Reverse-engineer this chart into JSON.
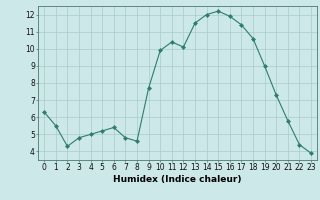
{
  "x": [
    0,
    1,
    2,
    3,
    4,
    5,
    6,
    7,
    8,
    9,
    10,
    11,
    12,
    13,
    14,
    15,
    16,
    17,
    18,
    19,
    20,
    21,
    22,
    23
  ],
  "y": [
    6.3,
    5.5,
    4.3,
    4.8,
    5.0,
    5.2,
    5.4,
    4.8,
    4.6,
    7.7,
    9.9,
    10.4,
    10.1,
    11.5,
    12.0,
    12.2,
    11.9,
    11.4,
    10.6,
    9.0,
    7.3,
    5.8,
    4.4,
    3.9
  ],
  "xlabel": "Humidex (Indice chaleur)",
  "xlim": [
    -0.5,
    23.5
  ],
  "ylim": [
    3.5,
    12.5
  ],
  "yticks": [
    4,
    5,
    6,
    7,
    8,
    9,
    10,
    11,
    12
  ],
  "xticks": [
    0,
    1,
    2,
    3,
    4,
    5,
    6,
    7,
    8,
    9,
    10,
    11,
    12,
    13,
    14,
    15,
    16,
    17,
    18,
    19,
    20,
    21,
    22,
    23
  ],
  "line_color": "#2e7d6e",
  "marker": "D",
  "marker_size": 2.0,
  "bg_color": "#cce8e8",
  "grid_color": "#aacaca",
  "label_fontsize": 6.5,
  "tick_fontsize": 5.5
}
